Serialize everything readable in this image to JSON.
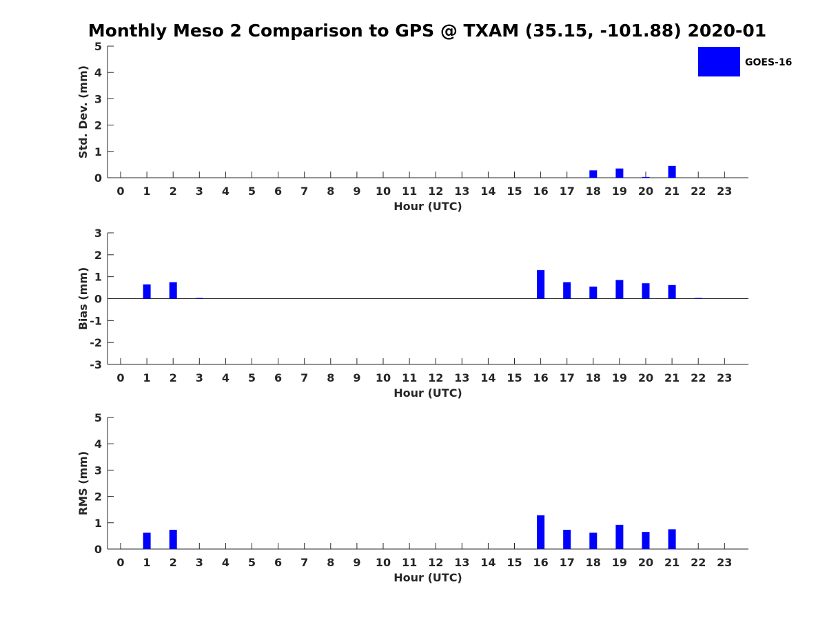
{
  "title": "Monthly Meso 2 Comparison to GPS @ TXAM (35.15, -101.88) 2020-01",
  "legend": {
    "label": "GOES-16",
    "placement": "top-right",
    "color": "#0000ff"
  },
  "chart_data": [
    {
      "type": "bar",
      "title": "",
      "xlabel": "Hour (UTC)",
      "ylabel": "Std. Dev. (mm)",
      "ylim": [
        0,
        5
      ],
      "yticks": [
        0,
        1,
        2,
        3,
        4,
        5
      ],
      "categories": [
        "0",
        "1",
        "2",
        "3",
        "4",
        "5",
        "6",
        "7",
        "8",
        "9",
        "10",
        "11",
        "12",
        "13",
        "14",
        "15",
        "16",
        "17",
        "18",
        "19",
        "20",
        "21",
        "22",
        "23"
      ],
      "series": [
        {
          "name": "GOES-16",
          "color": "#0000ff",
          "values": [
            0,
            0,
            0,
            0,
            0,
            0,
            0,
            0,
            0,
            0,
            0,
            0,
            0,
            0,
            0,
            0,
            0,
            0,
            0.28,
            0.35,
            0.03,
            0.45,
            0,
            0
          ]
        }
      ],
      "grid": false
    },
    {
      "type": "bar",
      "title": "",
      "xlabel": "Hour (UTC)",
      "ylabel": "Bias (mm)",
      "ylim": [
        -3,
        3
      ],
      "yticks": [
        -3,
        -2,
        -1,
        0,
        1,
        2,
        3
      ],
      "categories": [
        "0",
        "1",
        "2",
        "3",
        "4",
        "5",
        "6",
        "7",
        "8",
        "9",
        "10",
        "11",
        "12",
        "13",
        "14",
        "15",
        "16",
        "17",
        "18",
        "19",
        "20",
        "21",
        "22",
        "23"
      ],
      "series": [
        {
          "name": "GOES-16",
          "color": "#0000ff",
          "values": [
            0,
            0.65,
            0.75,
            0.03,
            0,
            0,
            0,
            0,
            0,
            0,
            0,
            0,
            0,
            0,
            0,
            0,
            1.3,
            0.75,
            0.55,
            0.85,
            0.7,
            0.62,
            0.03,
            0
          ]
        }
      ],
      "grid": false
    },
    {
      "type": "bar",
      "title": "",
      "xlabel": "Hour (UTC)",
      "ylabel": "RMS (mm)",
      "ylim": [
        0,
        5
      ],
      "yticks": [
        0,
        1,
        2,
        3,
        4,
        5
      ],
      "categories": [
        "0",
        "1",
        "2",
        "3",
        "4",
        "5",
        "6",
        "7",
        "8",
        "9",
        "10",
        "11",
        "12",
        "13",
        "14",
        "15",
        "16",
        "17",
        "18",
        "19",
        "20",
        "21",
        "22",
        "23"
      ],
      "series": [
        {
          "name": "GOES-16",
          "color": "#0000ff",
          "values": [
            0,
            0.62,
            0.73,
            0,
            0,
            0,
            0,
            0,
            0,
            0,
            0,
            0,
            0,
            0,
            0,
            0,
            1.28,
            0.73,
            0.62,
            0.92,
            0.65,
            0.75,
            0,
            0
          ]
        }
      ],
      "grid": false
    }
  ]
}
